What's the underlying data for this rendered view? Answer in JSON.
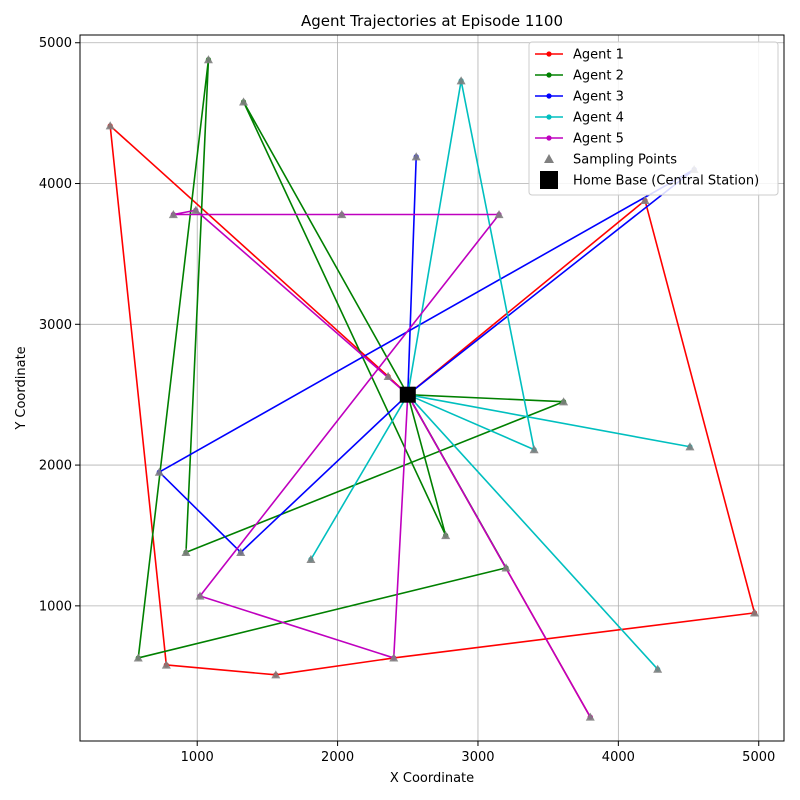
{
  "chart_data": {
    "type": "line",
    "title": "Agent Trajectories at Episode 1100",
    "xlabel": "X Coordinate",
    "ylabel": "Y Coordinate",
    "xlim": [
      165,
      5180
    ],
    "ylim": [
      40,
      5055
    ],
    "x_ticks": [
      1000,
      2000,
      3000,
      4000,
      5000
    ],
    "y_ticks": [
      1000,
      2000,
      3000,
      4000,
      5000
    ],
    "grid": true,
    "legend_position": "top-right",
    "home_base": {
      "name": "Home Base (Central Station)",
      "x": 2500,
      "y": 2500,
      "color": "#000000"
    },
    "sampling_points_label": "Sampling Points",
    "sampling_color": "#808080",
    "series": [
      {
        "name": "Agent 1",
        "color": "#ff0000",
        "points": [
          [
            2500,
            2500
          ],
          [
            2360,
            2630
          ],
          [
            380,
            4410
          ],
          [
            780,
            580
          ],
          [
            1560,
            510
          ],
          [
            2400,
            630
          ],
          [
            4970,
            950
          ],
          [
            4190,
            3880
          ],
          [
            2500,
            2500
          ],
          [
            3800,
            210
          ],
          [
            2500,
            2500
          ]
        ]
      },
      {
        "name": "Agent 2",
        "color": "#008000",
        "points": [
          [
            2500,
            2500
          ],
          [
            3610,
            2450
          ],
          [
            920,
            1380
          ],
          [
            1080,
            4880
          ],
          [
            580,
            630
          ],
          [
            3200,
            1270
          ],
          [
            2500,
            2500
          ],
          [
            2770,
            1500
          ],
          [
            1330,
            4580
          ],
          [
            2500,
            2500
          ]
        ]
      },
      {
        "name": "Agent 3",
        "color": "#0000ff",
        "points": [
          [
            2500,
            2500
          ],
          [
            4540,
            4100
          ],
          [
            730,
            1950
          ],
          [
            1310,
            1380
          ],
          [
            2500,
            2500
          ],
          [
            2560,
            4190
          ],
          [
            2500,
            2500
          ]
        ]
      },
      {
        "name": "Agent 4",
        "color": "#00bfbf",
        "points": [
          [
            2500,
            2500
          ],
          [
            2880,
            4730
          ],
          [
            3400,
            2110
          ],
          [
            2500,
            2500
          ],
          [
            1810,
            1330
          ],
          [
            2500,
            2500
          ],
          [
            4510,
            2130
          ],
          [
            2500,
            2500
          ],
          [
            4280,
            550
          ],
          [
            2500,
            2500
          ]
        ]
      },
      {
        "name": "Agent 5",
        "color": "#bf00bf",
        "points": [
          [
            2500,
            2500
          ],
          [
            3800,
            210
          ],
          [
            2500,
            2500
          ],
          [
            2400,
            630
          ],
          [
            1020,
            1070
          ],
          [
            3150,
            3780
          ],
          [
            2030,
            3780
          ],
          [
            830,
            3780
          ],
          [
            990,
            3810
          ],
          [
            2500,
            2500
          ]
        ]
      }
    ],
    "sampling_points": [
      [
        380,
        4410
      ],
      [
        780,
        580
      ],
      [
        1560,
        510
      ],
      [
        2400,
        630
      ],
      [
        4970,
        950
      ],
      [
        4190,
        3880
      ],
      [
        3800,
        210
      ],
      [
        2360,
        2630
      ],
      [
        3610,
        2450
      ],
      [
        920,
        1380
      ],
      [
        1080,
        4880
      ],
      [
        580,
        630
      ],
      [
        3200,
        1270
      ],
      [
        2770,
        1500
      ],
      [
        1330,
        4580
      ],
      [
        4540,
        4100
      ],
      [
        730,
        1950
      ],
      [
        1310,
        1380
      ],
      [
        2560,
        4190
      ],
      [
        2880,
        4730
      ],
      [
        3400,
        2110
      ],
      [
        1810,
        1330
      ],
      [
        4510,
        2130
      ],
      [
        4280,
        550
      ],
      [
        1020,
        1070
      ],
      [
        3150,
        3780
      ],
      [
        2030,
        3780
      ],
      [
        830,
        3780
      ],
      [
        990,
        3810
      ]
    ]
  }
}
